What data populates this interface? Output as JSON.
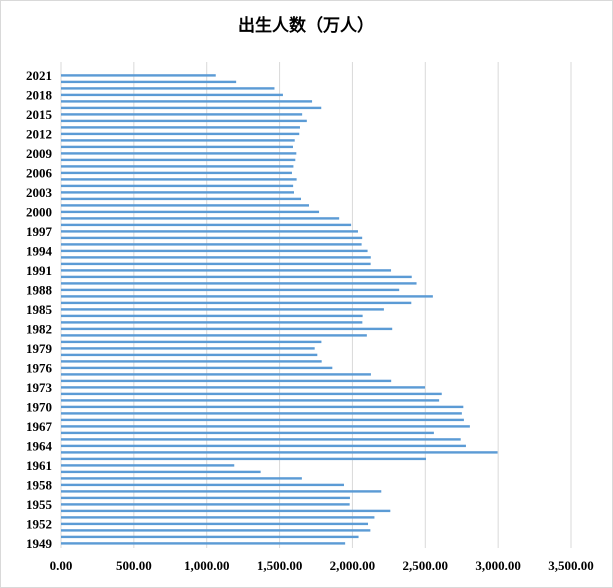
{
  "chart_data": {
    "type": "bar",
    "orientation": "horizontal",
    "title": "出生人数（万人）",
    "xlabel": "",
    "ylabel": "",
    "xlim": [
      0,
      3500
    ],
    "x_ticks": [
      "0.00",
      "500.00",
      "1,000.00",
      "1,500.00",
      "2,000.00",
      "2,500.00",
      "3,000.00",
      "3,500.00"
    ],
    "grid": true,
    "legend": "none",
    "bar_color": "#5b9bd5",
    "categories": [
      "1949",
      "1950",
      "1951",
      "1952",
      "1953",
      "1954",
      "1955",
      "1956",
      "1957",
      "1958",
      "1959",
      "1960",
      "1961",
      "1962",
      "1963",
      "1964",
      "1965",
      "1966",
      "1967",
      "1968",
      "1969",
      "1970",
      "1971",
      "1972",
      "1973",
      "1974",
      "1975",
      "1976",
      "1977",
      "1978",
      "1979",
      "1980",
      "1981",
      "1982",
      "1983",
      "1984",
      "1985",
      "1986",
      "1987",
      "1988",
      "1989",
      "1990",
      "1991",
      "1992",
      "1993",
      "1994",
      "1995",
      "1996",
      "1997",
      "1998",
      "1999",
      "2000",
      "2001",
      "2002",
      "2003",
      "2004",
      "2005",
      "2006",
      "2007",
      "2008",
      "2009",
      "2010",
      "2011",
      "2012",
      "2013",
      "2014",
      "2015",
      "2016",
      "2017",
      "2018",
      "2019",
      "2020",
      "2021"
    ],
    "visible_category_labels": [
      "1949",
      "1952",
      "1955",
      "1958",
      "1961",
      "1964",
      "1967",
      "1970",
      "1973",
      "1976",
      "1979",
      "1982",
      "1985",
      "1988",
      "1991",
      "1994",
      "1997",
      "2000",
      "2003",
      "2006",
      "2009",
      "2012",
      "2015",
      "2018",
      "2021"
    ],
    "values": [
      1950,
      2042,
      2123,
      2107,
      2151,
      2260,
      1981,
      1983,
      2198,
      1942,
      1653,
      1370,
      1189,
      2505,
      2996,
      2779,
      2743,
      2559,
      2806,
      2765,
      2751,
      2761,
      2595,
      2613,
      2498,
      2266,
      2127,
      1862,
      1789,
      1759,
      1741,
      1787,
      2099,
      2273,
      2068,
      2070,
      2216,
      2404,
      2552,
      2321,
      2440,
      2407,
      2265,
      2125,
      2126,
      2104,
      2063,
      2067,
      2038,
      1991,
      1909,
      1771,
      1702,
      1647,
      1599,
      1593,
      1617,
      1585,
      1595,
      1608,
      1615,
      1592,
      1604,
      1635,
      1640,
      1687,
      1655,
      1786,
      1723,
      1523,
      1465,
      1202,
      1062
    ]
  }
}
